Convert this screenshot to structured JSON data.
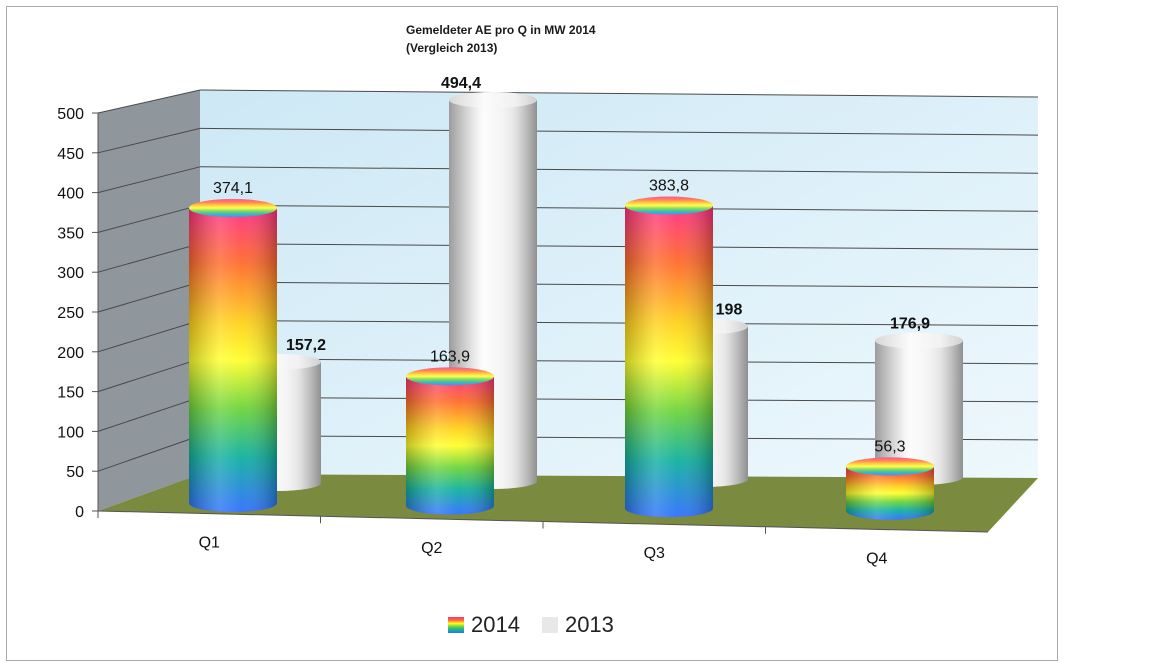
{
  "chart_data": {
    "type": "bar",
    "title_line1": "Gemeldeter AE  pro Q in MW 2014",
    "title_line2": "(Vergleich 2013)",
    "categories": [
      "Q1",
      "Q2",
      "Q3",
      "Q4"
    ],
    "series": [
      {
        "name": "2014",
        "values": [
          374.1,
          163.9,
          383.8,
          56.3
        ],
        "labels": [
          "374,1",
          "163,9",
          "383,8",
          "56,3"
        ]
      },
      {
        "name": "2013",
        "values": [
          157.2,
          494.4,
          198,
          176.9
        ],
        "labels": [
          "157,2",
          "494,4",
          "198",
          "176,9"
        ]
      }
    ],
    "yticks": [
      "0",
      "50",
      "100",
      "150",
      "200",
      "250",
      "300",
      "350",
      "400",
      "450",
      "500"
    ],
    "ylim": [
      0,
      500
    ],
    "grid": true,
    "legend_position": "bottom",
    "colors": {
      "wall": "#ddeff9",
      "side_wall": "#8f969c",
      "floor": "#7a8a3e",
      "series_2014": "rainbow",
      "series_2013": "#e8e8e8"
    }
  }
}
